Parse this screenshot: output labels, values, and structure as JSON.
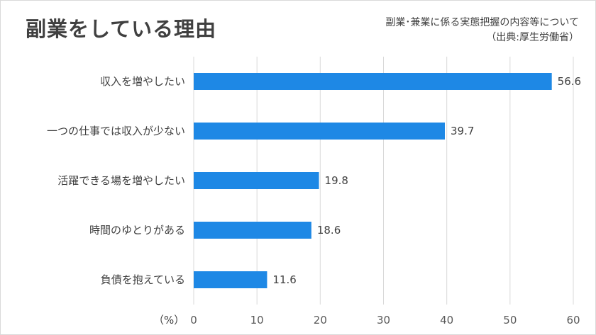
{
  "title": "副業をしている理由",
  "source": {
    "line1": "副業･兼業に係る実態把握の内容等について",
    "line2": "（出典:厚生労働省）"
  },
  "chart_data": {
    "type": "bar",
    "orientation": "horizontal",
    "categories": [
      "収入を増やしたい",
      "一つの仕事では収入が少ない",
      "活躍できる場を増やしたい",
      "時間のゆとりがある",
      "負債を抱えている"
    ],
    "values": [
      56.6,
      39.7,
      19.8,
      18.6,
      11.6
    ],
    "xlim": [
      0,
      60
    ],
    "xticks": [
      0,
      10,
      20,
      30,
      40,
      50,
      60
    ],
    "unit_label": "（%）",
    "grid": true,
    "bar_color": "#1e88e5"
  }
}
